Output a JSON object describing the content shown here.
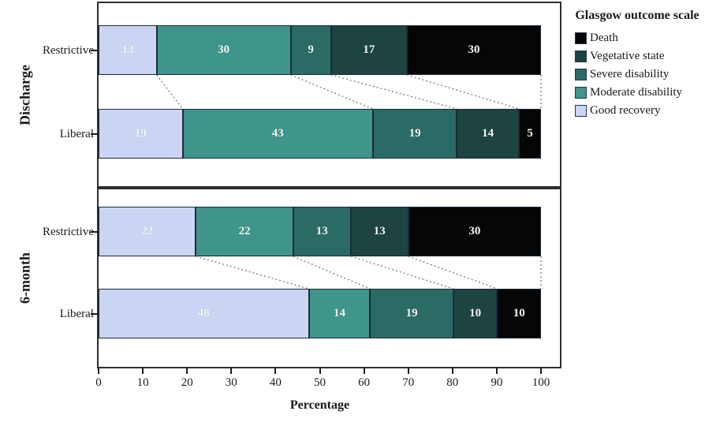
{
  "chart_data": {
    "type": "bar",
    "orientation": "horizontal",
    "stacked": true,
    "xlabel": "Percentage",
    "xlim": [
      0,
      100
    ],
    "xticks": [
      0,
      10,
      20,
      30,
      40,
      50,
      60,
      70,
      80,
      90,
      100
    ],
    "legend_title": "Glasgow outcome scale",
    "legend_position": "right",
    "stack_order": [
      "Good recovery",
      "Moderate disability",
      "Severe disability",
      "Vegetative state",
      "Death"
    ],
    "legend": [
      {
        "label": "Death",
        "color": "#060606"
      },
      {
        "label": "Vegetative state",
        "color": "#1d4441"
      },
      {
        "label": "Severe disability",
        "color": "#2b6b66"
      },
      {
        "label": "Moderate disability",
        "color": "#3f948b"
      },
      {
        "label": "Good recovery",
        "color": "#cbd5f3"
      }
    ],
    "panels": [
      {
        "group": "Discharge",
        "rows": [
          {
            "label": "Restrictive",
            "values": [
              13,
              30,
              9,
              17,
              30
            ]
          },
          {
            "label": "Liberal",
            "values": [
              19,
              43,
              19,
              14,
              5
            ]
          }
        ]
      },
      {
        "group": "6-month",
        "rows": [
          {
            "label": "Restrictive",
            "values": [
              22,
              22,
              13,
              13,
              30
            ]
          },
          {
            "label": "Liberal",
            "values": [
              48,
              14,
              19,
              10,
              10
            ]
          }
        ]
      }
    ]
  },
  "colors": {
    "frame": "#2e2e2e",
    "segment_border": "#1b2b38",
    "connector": "#8f8277",
    "axis_text": "#1a1a1a",
    "value_label": "#f7f7ef",
    "background": "#ffffff"
  }
}
